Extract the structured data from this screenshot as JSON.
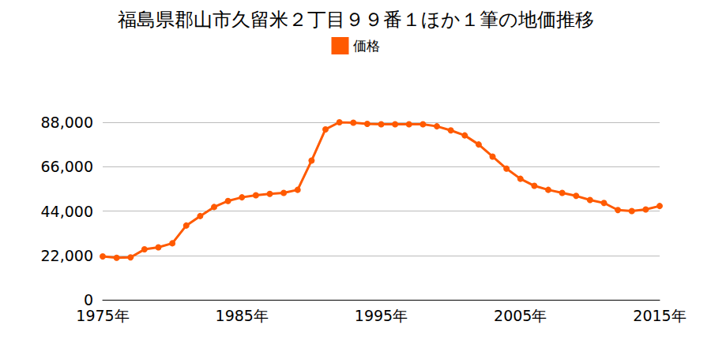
{
  "chart_data": {
    "type": "line",
    "title": "福島県郡山市久留米２丁目９９番１ほか１筆の地価推移",
    "categories": [
      "1975年",
      null,
      null,
      null,
      null,
      null,
      null,
      null,
      null,
      null,
      "1985年",
      null,
      null,
      null,
      null,
      null,
      null,
      null,
      null,
      null,
      "1995年",
      null,
      null,
      null,
      null,
      null,
      null,
      null,
      null,
      null,
      "2005年",
      null,
      null,
      null,
      null,
      null,
      null,
      null,
      null,
      null,
      "2015年"
    ],
    "series": [
      {
        "name": "価格",
        "color": "#ff5a00",
        "marker": "circle",
        "line_style": "solid",
        "values": [
          21500,
          20800,
          21000,
          25000,
          26000,
          28000,
          36800,
          41500,
          46000,
          49000,
          50800,
          51800,
          52500,
          53000,
          54500,
          69000,
          84500,
          88000,
          87800,
          87200,
          87000,
          87000,
          87000,
          87000,
          86000,
          84000,
          81500,
          77000,
          71000,
          65000,
          60000,
          56500,
          54500,
          53000,
          51500,
          49500,
          48000,
          44500,
          44000,
          44800,
          46500
        ]
      }
    ],
    "ylim": [
      0,
      88000
    ],
    "yticks": [
      0,
      {
        "value": 22000,
        "label": "22,000"
      },
      {
        "value": 44000,
        "label": "44,000"
      },
      {
        "value": 66000,
        "label": "66,000"
      },
      {
        "value": 88000,
        "label": "88,000"
      }
    ],
    "grid": true,
    "legend": "top"
  }
}
